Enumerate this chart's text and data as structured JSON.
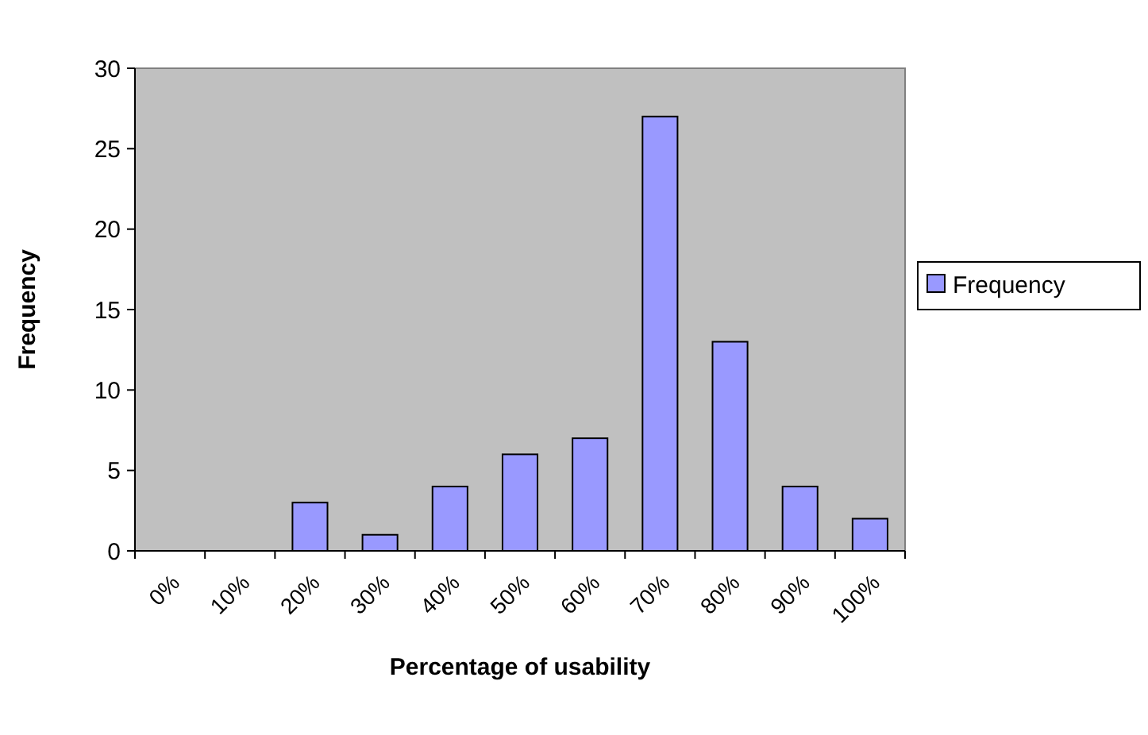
{
  "chart_data": {
    "type": "bar",
    "xlabel": "Percentage of usability",
    "ylabel": "Frequency",
    "categories": [
      "0%",
      "10%",
      "20%",
      "30%",
      "40%",
      "50%",
      "60%",
      "70%",
      "80%",
      "90%",
      "100%"
    ],
    "series": [
      {
        "name": "Frequency",
        "color": "#9999ff",
        "values": [
          0,
          0,
          3,
          1,
          4,
          6,
          7,
          27,
          13,
          4,
          2
        ]
      }
    ],
    "ylim": [
      0,
      30
    ],
    "yticks": [
      0,
      5,
      10,
      15,
      20,
      25,
      30
    ],
    "grid": false,
    "legend": "right"
  }
}
